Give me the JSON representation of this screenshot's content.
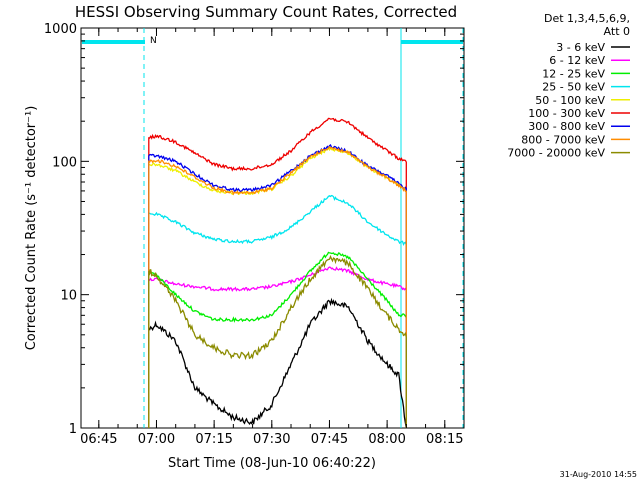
{
  "chart_data": {
    "type": "line",
    "title": "HESSI Observing Summary Count Rates, Corrected",
    "xlabel": "Start Time (08-Jun-10 06:40:22)",
    "ylabel": "Corrected Count Rate (s⁻¹ detector⁻¹)",
    "yscale": "log",
    "ylim": [
      1,
      1000
    ],
    "xlim": [
      "06:40:22",
      "08:20:00"
    ],
    "x_ticks": [
      "06:45",
      "07:00",
      "07:15",
      "07:30",
      "07:45",
      "08:00",
      "08:15"
    ],
    "y_ticks": [
      "1",
      "10",
      "100",
      "1000"
    ],
    "legend_header": [
      "Det 1,3,4,5,6,9,",
      "Att 0"
    ],
    "legend_position": "right, outside plot",
    "grid": false,
    "annotation": {
      "text": "N",
      "color": "#00e5ee"
    },
    "timestamp": "31-Aug-2010 14:55",
    "series": [
      {
        "name": "3 - 6 keV",
        "color": "#000000",
        "x": [
          "06:58",
          "07:00",
          "07:05",
          "07:10",
          "07:15",
          "07:20",
          "07:25",
          "07:30",
          "07:35",
          "07:40",
          "07:45",
          "07:50",
          "07:55",
          "08:00",
          "08:03",
          "08:05"
        ],
        "values": [
          5.5,
          6.0,
          4.5,
          2.0,
          1.5,
          1.2,
          1.1,
          1.5,
          3.0,
          6.0,
          9.0,
          8.0,
          4.5,
          3.0,
          2.5,
          1.0
        ]
      },
      {
        "name": "6 - 12 keV",
        "color": "#ff00ff",
        "x": [
          "06:58",
          "07:00",
          "07:05",
          "07:10",
          "07:15",
          "07:20",
          "07:25",
          "07:30",
          "07:35",
          "07:40",
          "07:45",
          "07:50",
          "07:55",
          "08:00",
          "08:03",
          "08:05"
        ],
        "values": [
          13,
          13,
          12,
          11.5,
          11,
          11,
          11,
          11.5,
          12.5,
          14,
          16,
          15,
          13,
          12,
          11.5,
          11
        ]
      },
      {
        "name": "12 - 25 keV",
        "color": "#00ee00",
        "x": [
          "06:58",
          "07:00",
          "07:05",
          "07:10",
          "07:15",
          "07:20",
          "07:25",
          "07:30",
          "07:35",
          "07:40",
          "07:45",
          "07:50",
          "07:55",
          "08:00",
          "08:03",
          "08:05"
        ],
        "values": [
          15,
          14,
          10,
          7.5,
          6.5,
          6.5,
          6.5,
          7,
          10,
          15,
          21,
          19,
          13,
          9,
          7,
          7
        ]
      },
      {
        "name": "25 - 50 keV",
        "color": "#00e5ee",
        "x": [
          "06:58",
          "07:00",
          "07:05",
          "07:10",
          "07:15",
          "07:20",
          "07:25",
          "07:30",
          "07:35",
          "07:40",
          "07:45",
          "07:50",
          "07:55",
          "08:00",
          "08:03",
          "08:05"
        ],
        "values": [
          41,
          40,
          35,
          29,
          26,
          25,
          25,
          27,
          32,
          42,
          55,
          48,
          35,
          28,
          25,
          24
        ]
      },
      {
        "name": "50 - 100 keV",
        "color": "#eeee00",
        "x": [
          "06:58",
          "07:00",
          "07:05",
          "07:10",
          "07:15",
          "07:20",
          "07:25",
          "07:30",
          "07:35",
          "07:40",
          "07:45",
          "07:50",
          "07:55",
          "08:00",
          "08:03",
          "08:05"
        ],
        "values": [
          95,
          95,
          85,
          70,
          60,
          58,
          58,
          62,
          78,
          105,
          125,
          115,
          90,
          75,
          66,
          60
        ]
      },
      {
        "name": "100 - 300 keV",
        "color": "#ee0000",
        "x": [
          "06:58",
          "07:00",
          "07:05",
          "07:10",
          "07:15",
          "07:20",
          "07:25",
          "07:30",
          "07:35",
          "07:40",
          "07:45",
          "07:50",
          "07:55",
          "08:00",
          "08:03",
          "08:05"
        ],
        "values": [
          150,
          155,
          140,
          115,
          95,
          88,
          88,
          95,
          120,
          165,
          210,
          195,
          150,
          120,
          105,
          100
        ]
      },
      {
        "name": "300 - 800 keV",
        "color": "#0000ee",
        "x": [
          "06:58",
          "07:00",
          "07:05",
          "07:10",
          "07:15",
          "07:20",
          "07:25",
          "07:30",
          "07:35",
          "07:40",
          "07:45",
          "07:50",
          "07:55",
          "08:00",
          "08:03",
          "08:05"
        ],
        "values": [
          110,
          110,
          100,
          80,
          66,
          61,
          61,
          66,
          85,
          110,
          130,
          118,
          92,
          78,
          68,
          62
        ]
      },
      {
        "name": "800 - 7000 keV",
        "color": "#ff8c00",
        "x": [
          "06:58",
          "07:00",
          "07:05",
          "07:10",
          "07:15",
          "07:20",
          "07:25",
          "07:30",
          "07:35",
          "07:40",
          "07:45",
          "07:50",
          "07:55",
          "08:00",
          "08:03",
          "08:05"
        ],
        "values": [
          100,
          102,
          92,
          76,
          63,
          58,
          58,
          63,
          82,
          108,
          128,
          116,
          90,
          75,
          66,
          60
        ]
      },
      {
        "name": "7000 - 20000 keV",
        "color": "#8b8b00",
        "x": [
          "06:58",
          "07:00",
          "07:05",
          "07:10",
          "07:15",
          "07:20",
          "07:25",
          "07:30",
          "07:35",
          "07:40",
          "07:45",
          "07:50",
          "07:55",
          "08:00",
          "08:03",
          "08:05"
        ],
        "values": [
          15,
          14,
          9,
          5,
          4,
          3.5,
          3.5,
          4.5,
          8,
          13,
          19,
          17,
          11,
          7,
          5.5,
          5
        ]
      }
    ]
  }
}
